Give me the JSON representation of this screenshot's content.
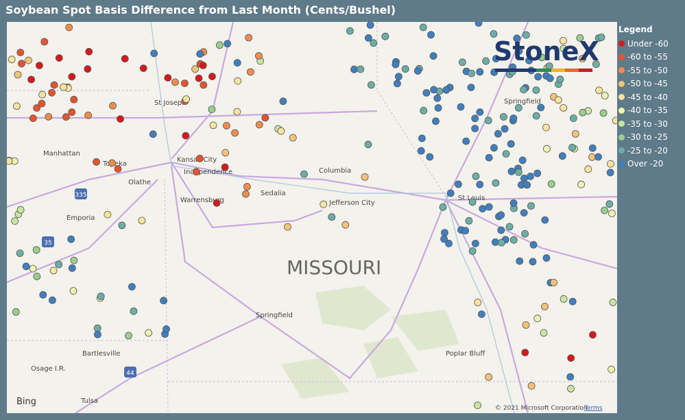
{
  "header": {
    "title": "Soybean Spot Basis Difference from Last Month (Cents/Bushel)"
  },
  "legend": {
    "title": "Legend",
    "items": [
      {
        "label": "Under -60",
        "color": "#d7191c"
      },
      {
        "label": "-60 to -55",
        "color": "#e5542f"
      },
      {
        "label": "-55 to -50",
        "color": "#f08c4e"
      },
      {
        "label": "-50 to -45",
        "color": "#f7c27a"
      },
      {
        "label": "-45 to -40",
        "color": "#fbe3a0"
      },
      {
        "label": "-40 to -35",
        "color": "#eef5b0"
      },
      {
        "label": "-35 to -30",
        "color": "#c8e6a2"
      },
      {
        "label": "-30 to -25",
        "color": "#98cf8e"
      },
      {
        "label": "-25 to -20",
        "color": "#6caea7"
      },
      {
        "label": "Over -20",
        "color": "#3f7fbf"
      }
    ]
  },
  "map": {
    "labels": [
      "St Joseph",
      "Manhattan",
      "Topeka",
      "Kansas City",
      "Independence",
      "Olathe",
      "Warrensburg",
      "Sedalia",
      "Columbia",
      "Jefferson City",
      "St Louis",
      "Springfield",
      "Emporia",
      "Springfield",
      "Bartlesville",
      "Osage I.R.",
      "Poplar Bluff",
      "Tulsa",
      "335",
      "35",
      "44"
    ],
    "state": "MISSOURI"
  },
  "logo": "StoneX",
  "bing": "Bing",
  "attribution": {
    "copyright": "© 2021 Microsoft Corporation",
    "terms": "Terms"
  }
}
